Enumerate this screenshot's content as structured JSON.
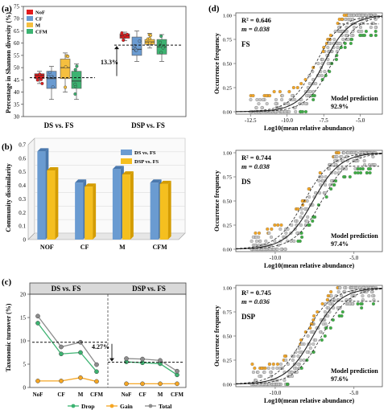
{
  "chart_data": [
    {
      "panel": "(a)",
      "type": "boxplot",
      "ylabel": "Percentage in Shannon diversity (%)",
      "ylim": [
        30,
        75
      ],
      "yticks": [
        30,
        35,
        40,
        45,
        50,
        55,
        60,
        65,
        70,
        75
      ],
      "groups": [
        "DS vs. FS",
        "DSP vs. FS"
      ],
      "legend": [
        "NoF",
        "CF",
        "M",
        "CFM"
      ],
      "colors": {
        "NoF": "#e31a1c",
        "CF": "#6a9bd1",
        "M": "#f5bf3f",
        "CFM": "#3cb371"
      },
      "series": [
        {
          "group": 0,
          "name": "NoF",
          "min": 43.5,
          "q1": 45.5,
          "median": 46.8,
          "q3": 47.5,
          "max": 48.5
        },
        {
          "group": 0,
          "name": "CF",
          "min": 37,
          "q1": 41.5,
          "median": 45.5,
          "q3": 48.5,
          "max": 50.5
        },
        {
          "group": 0,
          "name": "M",
          "min": 40,
          "q1": 45.5,
          "median": 50,
          "q3": 53.5,
          "max": 56
        },
        {
          "group": 0,
          "name": "CFM",
          "min": 37,
          "q1": 41.5,
          "median": 44.5,
          "q3": 48.5,
          "max": 51.5
        },
        {
          "group": 1,
          "name": "NoF",
          "min": 61,
          "q1": 62,
          "median": 63,
          "q3": 63.8,
          "max": 64.5
        },
        {
          "group": 1,
          "name": "CF",
          "min": 52.5,
          "q1": 55,
          "median": 57.5,
          "q3": 62.5,
          "max": 65
        },
        {
          "group": 1,
          "name": "M",
          "min": 58,
          "q1": 59.5,
          "median": 60.5,
          "q3": 61.5,
          "max": 64
        },
        {
          "group": 1,
          "name": "CFM",
          "min": 52.5,
          "q1": 55.5,
          "median": 58.5,
          "q3": 61.5,
          "max": 63.5
        }
      ],
      "group_means": [
        45.9,
        59.2
      ],
      "annotation": "13.3%"
    },
    {
      "panel": "(b)",
      "type": "bar",
      "ylabel": "Community dissimilarity",
      "ylim": [
        0,
        0.7
      ],
      "yticks": [
        0,
        0.1,
        0.2,
        0.3,
        0.4,
        0.5,
        0.6,
        0.7
      ],
      "categories": [
        "NOF",
        "CF",
        "M",
        "CFM"
      ],
      "series": [
        {
          "name": "DS vs. FS",
          "color": "#6a9bd1",
          "values": [
            0.65,
            0.42,
            0.52,
            0.42
          ]
        },
        {
          "name": "DSP vs. FS",
          "color": "#f5bf1f",
          "values": [
            0.51,
            0.39,
            0.48,
            0.41
          ]
        }
      ]
    },
    {
      "panel": "(c)",
      "type": "line",
      "ylabel": "Taxonomic turnover (%)",
      "ylim": [
        0,
        20
      ],
      "yticks": [
        0,
        5,
        10,
        15,
        20
      ],
      "groups": [
        "DS vs. FS",
        "DSP vs. FS"
      ],
      "categories": [
        "NoF",
        "CF",
        "M",
        "CFM"
      ],
      "series": [
        {
          "name": "Drop",
          "color": "#3cb371",
          "values": [
            [
              13.8,
              7.2,
              7.5,
              3.4
            ],
            [
              5.5,
              5.3,
              5.1,
              2.7
            ]
          ]
        },
        {
          "name": "Gain",
          "color": "#f5a623",
          "values": [
            [
              1.4,
              1.4,
              2.1,
              1.3
            ],
            [
              0.8,
              0.8,
              0.8,
              0.8
            ]
          ]
        },
        {
          "name": "Total",
          "color": "#8c8c8c",
          "values": [
            [
              15.3,
              8.7,
              9.7,
              4.9
            ],
            [
              6.2,
              6.1,
              5.8,
              3.5
            ]
          ]
        }
      ],
      "group_means": [
        9.7,
        5.4
      ],
      "annotation": "4.27%"
    },
    {
      "panel": "(d)",
      "type": "scatter",
      "ylabel": "Occurrence frequency",
      "xlabel": "Log10(mean relative abundance)",
      "ylim": [
        0,
        1
      ],
      "yticks": [
        "0.00",
        "0.25",
        "0.50",
        "0.75",
        "1.00"
      ],
      "subplots": [
        {
          "label": "FS",
          "r2": "R² = 0.646",
          "m": "m = 0.038",
          "prediction_label": "Model prediction",
          "prediction": "92.9%",
          "xlim": [
            -13.5,
            -3.5
          ],
          "xticks": [
            "-12.5",
            "-10.0",
            "-7.5",
            "-5.0"
          ],
          "xtick_values": [
            -12.5,
            -10,
            -7.5,
            -5
          ],
          "center": -7.5,
          "plateau": 0.91
        },
        {
          "label": "DS",
          "r2": "R² = 0.744",
          "m": "m = 0.038",
          "prediction_label": "Model prediction",
          "prediction": "97.4%",
          "xlim": [
            -12.5,
            -3.2
          ],
          "xticks": [
            "-10.0",
            "-5.0"
          ],
          "xtick_values": [
            -10,
            -5
          ],
          "center": -7.6,
          "plateau": 0.86
        },
        {
          "label": "DSP",
          "r2": "R² = 0.745",
          "m": "m = 0.036",
          "prediction_label": "Model prediction",
          "prediction": "97.6%",
          "xlim": [
            -12.5,
            -3.2
          ],
          "xticks": [
            "-10.0",
            "-5.0"
          ],
          "xtick_values": [
            -10,
            -5
          ],
          "center": -7.6,
          "plateau": 0.86
        }
      ]
    }
  ]
}
